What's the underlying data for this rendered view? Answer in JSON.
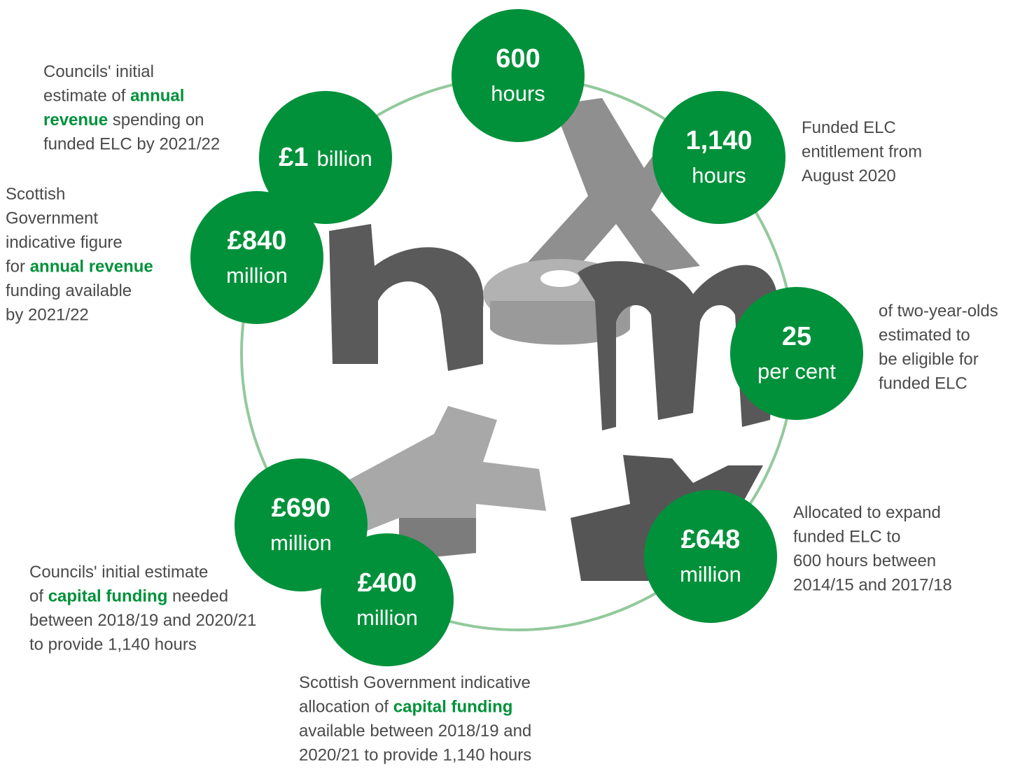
{
  "circles": [
    {
      "value": "600",
      "unit": "hours"
    },
    {
      "value": "1,140",
      "unit": "hours"
    },
    {
      "value": "£1",
      "unit": "billion"
    },
    {
      "value": "£840",
      "unit": "million"
    },
    {
      "value": "25",
      "unit": "per cent"
    },
    {
      "value": "£690",
      "unit": "million"
    },
    {
      "value": "£400",
      "unit": "million"
    },
    {
      "value": "£648",
      "unit": "million"
    }
  ],
  "captions": [
    [
      [
        "Councils' initial"
      ],
      [
        "estimate of ",
        {
          "text": "annual",
          "emphasis": true
        }
      ],
      [
        {
          "text": "revenue",
          "emphasis": true
        },
        " spending on"
      ],
      [
        "funded ELC by 2021/22"
      ]
    ],
    [
      [
        "Scottish"
      ],
      [
        "Government"
      ],
      [
        "indicative figure"
      ],
      [
        "for ",
        {
          "text": "annual revenue",
          "emphasis": true
        }
      ],
      [
        "funding available"
      ],
      [
        "by 2021/22"
      ]
    ],
    [
      [
        "Funded ELC"
      ],
      [
        "entitlement from"
      ],
      [
        "August 2020"
      ]
    ],
    [
      [
        "of two-year-olds"
      ],
      [
        "estimated to"
      ],
      [
        "be eligible for"
      ],
      [
        "funded ELC"
      ]
    ],
    [
      [
        "Allocated to expand"
      ],
      [
        "funded ELC to"
      ],
      [
        "600 hours between"
      ],
      [
        "2014/15 and 2017/18"
      ]
    ],
    [
      [
        "Councils' initial estimate"
      ],
      [
        "of ",
        {
          "text": "capital funding",
          "emphasis": true
        },
        " needed"
      ],
      [
        "between 2018/19 and 2020/21"
      ],
      [
        "to provide 1,140 hours"
      ]
    ],
    [
      [
        "Scottish Government indicative"
      ],
      [
        "allocation of ",
        {
          "text": "capital funding",
          "emphasis": true
        }
      ],
      [
        "available between 2018/19 and"
      ],
      [
        "2020/21 to provide 1,140 hours"
      ]
    ]
  ]
}
